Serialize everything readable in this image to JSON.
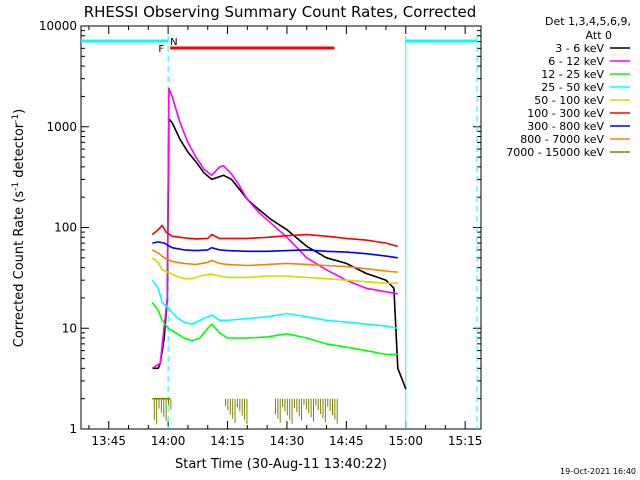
{
  "chart_data": {
    "type": "line",
    "title": "RHESSI Observing Summary Count Rates, Corrected",
    "xlabel": "Start Time (30-Aug-11 13:40:22)",
    "ylabel_main": "Corrected Count Rate (s",
    "ylabel_sup1": "-1",
    "ylabel_mid": " detector",
    "ylabel_sup2": "-1",
    "ylabel_end": ")",
    "footer_date": "19-Oct-2021 16:40",
    "y_scale": "log",
    "ylim": [
      1,
      10000
    ],
    "xlim_minutes": [
      -2,
      99
    ],
    "x_ticks": [
      {
        "minute": 5,
        "label": "13:45"
      },
      {
        "minute": 20,
        "label": "14:00"
      },
      {
        "minute": 35,
        "label": "14:15"
      },
      {
        "minute": 50,
        "label": "14:30"
      },
      {
        "minute": 65,
        "label": "14:45"
      },
      {
        "minute": 80,
        "label": "15:00"
      },
      {
        "minute": 95,
        "label": "15:15"
      }
    ],
    "y_ticks": [
      {
        "value": 1,
        "label": "1"
      },
      {
        "value": 10,
        "label": "10"
      },
      {
        "value": 100,
        "label": "100"
      },
      {
        "value": 1000,
        "label": "1000"
      },
      {
        "value": 10000,
        "label": "10000"
      }
    ],
    "legend_placement": "right",
    "legend_header": [
      "Det 1,3,4,5,6,9,",
      "Att 0"
    ],
    "series": [
      {
        "name": "3 - 6 keV",
        "color": "#000000",
        "points": [
          [
            16,
            4
          ],
          [
            17.5,
            4
          ],
          [
            18,
            4.5
          ],
          [
            19,
            8
          ],
          [
            19.8,
            20
          ],
          [
            20.2,
            1200
          ],
          [
            21,
            1100
          ],
          [
            23,
            750
          ],
          [
            25,
            560
          ],
          [
            27,
            450
          ],
          [
            29,
            350
          ],
          [
            31,
            300
          ],
          [
            33,
            320
          ],
          [
            34,
            330
          ],
          [
            36,
            300
          ],
          [
            38,
            240
          ],
          [
            40,
            190
          ],
          [
            43,
            150
          ],
          [
            46,
            120
          ],
          [
            50,
            95
          ],
          [
            55,
            65
          ],
          [
            60,
            50
          ],
          [
            65,
            44
          ],
          [
            70,
            35
          ],
          [
            75,
            30
          ],
          [
            77,
            25
          ],
          [
            78,
            4
          ],
          [
            80,
            2.5
          ]
        ]
      },
      {
        "name": "6 - 12 keV",
        "color": "#ff00ff",
        "points": [
          [
            16,
            4
          ],
          [
            18,
            4.5
          ],
          [
            19.8,
            20
          ],
          [
            20.2,
            2400
          ],
          [
            21,
            2000
          ],
          [
            23,
            1100
          ],
          [
            25,
            700
          ],
          [
            27,
            500
          ],
          [
            29,
            380
          ],
          [
            31,
            330
          ],
          [
            33,
            400
          ],
          [
            34,
            410
          ],
          [
            36,
            340
          ],
          [
            38,
            260
          ],
          [
            40,
            190
          ],
          [
            43,
            140
          ],
          [
            46,
            110
          ],
          [
            50,
            80
          ],
          [
            55,
            50
          ],
          [
            60,
            38
          ],
          [
            65,
            30
          ],
          [
            70,
            25
          ],
          [
            75,
            23
          ],
          [
            78,
            22
          ]
        ]
      },
      {
        "name": "12 - 25 keV",
        "color": "#00ff00",
        "points": [
          [
            16,
            18
          ],
          [
            17.5,
            15
          ],
          [
            18.5,
            12
          ],
          [
            20,
            10
          ],
          [
            22,
            9
          ],
          [
            24,
            8
          ],
          [
            26,
            7.5
          ],
          [
            28,
            8
          ],
          [
            30,
            10
          ],
          [
            31,
            11
          ],
          [
            33,
            9
          ],
          [
            35,
            8
          ],
          [
            40,
            8
          ],
          [
            45,
            8.2
          ],
          [
            50,
            8.8
          ],
          [
            55,
            8
          ],
          [
            60,
            7
          ],
          [
            65,
            6.5
          ],
          [
            70,
            6
          ],
          [
            75,
            5.5
          ],
          [
            78,
            5.5
          ]
        ]
      },
      {
        "name": "25 - 50 keV",
        "color": "#00ffff",
        "points": [
          [
            16,
            30
          ],
          [
            17.5,
            25
          ],
          [
            18.5,
            18
          ],
          [
            20,
            16
          ],
          [
            22,
            13
          ],
          [
            24,
            11.5
          ],
          [
            26,
            11
          ],
          [
            28,
            12
          ],
          [
            30,
            13
          ],
          [
            31,
            13.5
          ],
          [
            33,
            12
          ],
          [
            35,
            12
          ],
          [
            40,
            12.5
          ],
          [
            45,
            13
          ],
          [
            50,
            14
          ],
          [
            55,
            13
          ],
          [
            60,
            12
          ],
          [
            65,
            11.5
          ],
          [
            70,
            11
          ],
          [
            75,
            10.5
          ],
          [
            78,
            10
          ]
        ]
      },
      {
        "name": "50 - 100 keV",
        "color": "#d8d800",
        "points": [
          [
            16,
            50
          ],
          [
            17.5,
            45
          ],
          [
            18.5,
            38
          ],
          [
            20,
            36
          ],
          [
            22,
            33
          ],
          [
            24,
            31
          ],
          [
            26,
            31
          ],
          [
            28,
            33
          ],
          [
            30,
            34
          ],
          [
            31,
            34.5
          ],
          [
            33,
            33
          ],
          [
            35,
            32
          ],
          [
            40,
            32
          ],
          [
            45,
            33
          ],
          [
            50,
            33
          ],
          [
            55,
            32
          ],
          [
            60,
            31
          ],
          [
            65,
            30
          ],
          [
            70,
            29
          ],
          [
            75,
            28
          ],
          [
            78,
            28
          ]
        ]
      },
      {
        "name": "100 - 300 keV",
        "color": "#ff0000",
        "points": [
          [
            16,
            85
          ],
          [
            17.5,
            95
          ],
          [
            18.5,
            105
          ],
          [
            19.5,
            90
          ],
          [
            21,
            82
          ],
          [
            24,
            79
          ],
          [
            27,
            77
          ],
          [
            30,
            78
          ],
          [
            31,
            85
          ],
          [
            33,
            78
          ],
          [
            35,
            78
          ],
          [
            40,
            78
          ],
          [
            45,
            80
          ],
          [
            50,
            83
          ],
          [
            55,
            85
          ],
          [
            60,
            82
          ],
          [
            65,
            78
          ],
          [
            70,
            75
          ],
          [
            75,
            70
          ],
          [
            78,
            65
          ]
        ]
      },
      {
        "name": "300 - 800 keV",
        "color": "#0000ff",
        "points": [
          [
            16,
            70
          ],
          [
            17.5,
            72
          ],
          [
            19,
            70
          ],
          [
            21,
            63
          ],
          [
            24,
            60
          ],
          [
            27,
            59
          ],
          [
            30,
            60
          ],
          [
            31,
            63
          ],
          [
            33,
            60
          ],
          [
            35,
            59
          ],
          [
            40,
            58
          ],
          [
            45,
            58
          ],
          [
            50,
            59
          ],
          [
            55,
            60
          ],
          [
            60,
            58
          ],
          [
            65,
            57
          ],
          [
            70,
            55
          ],
          [
            75,
            52
          ],
          [
            78,
            50
          ]
        ]
      },
      {
        "name": "800 - 7000 keV",
        "color": "#ff8000",
        "points": [
          [
            16,
            60
          ],
          [
            17.5,
            56
          ],
          [
            19,
            50
          ],
          [
            21,
            46
          ],
          [
            24,
            44
          ],
          [
            27,
            43
          ],
          [
            30,
            45
          ],
          [
            31,
            47
          ],
          [
            33,
            44
          ],
          [
            35,
            43
          ],
          [
            40,
            42
          ],
          [
            45,
            43
          ],
          [
            50,
            44
          ],
          [
            55,
            43
          ],
          [
            60,
            42
          ],
          [
            65,
            41
          ],
          [
            70,
            39
          ],
          [
            75,
            37
          ],
          [
            78,
            36
          ]
        ]
      },
      {
        "name": "7000 - 15000 keV",
        "color": "#808000",
        "points": [
          [
            16,
            2
          ],
          [
            17.5,
            2
          ],
          [
            18.5,
            2
          ],
          [
            19.5,
            2
          ],
          [
            20.5,
            2
          ]
        ]
      }
    ],
    "flags": [
      {
        "label": "F",
        "color": "#ff0000",
        "x_start": 20,
        "x_end": 62
      },
      {
        "label": "N",
        "color": "#00ffff",
        "x_start": 20,
        "x_end": 20
      }
    ],
    "night_bars": [
      {
        "color": "#00ffff",
        "x_start": -2,
        "x_end": 20
      },
      {
        "color": "#00ffff",
        "x_start": 80,
        "x_end": 98
      }
    ],
    "vertical_markers": [
      {
        "minute": 20,
        "color": "#00ffff",
        "style": "dashed"
      },
      {
        "minute": 80,
        "color": "#00ffff",
        "style": "solid"
      },
      {
        "minute": 98,
        "color": "#00ffff",
        "style": "dashed"
      }
    ]
  }
}
